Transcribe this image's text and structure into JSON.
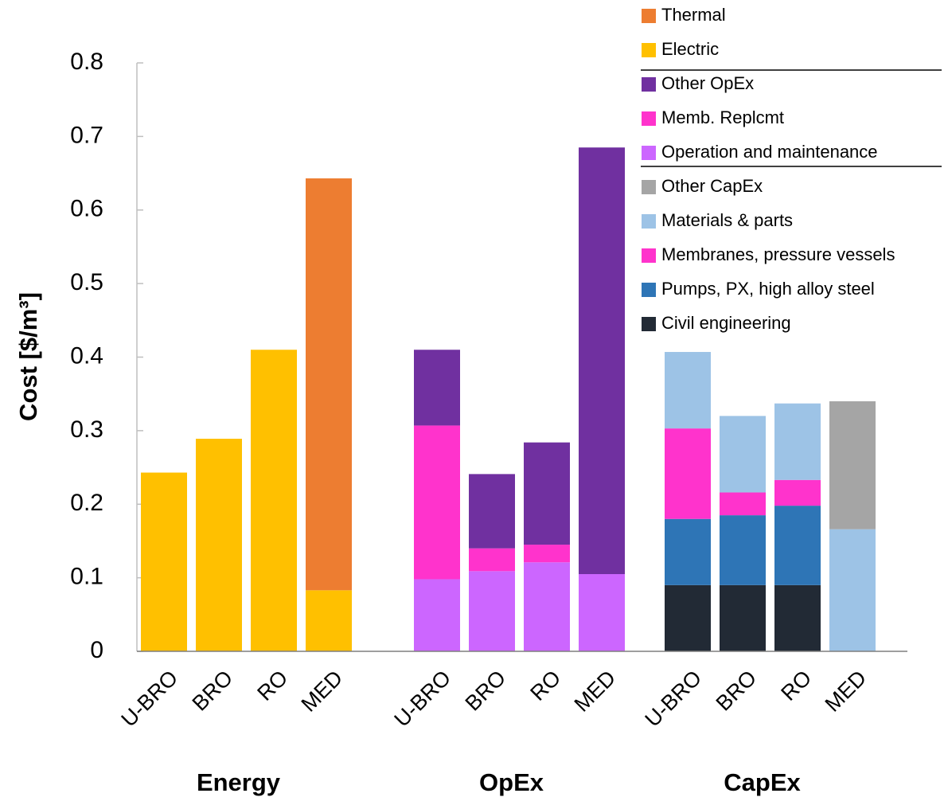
{
  "chart_data": {
    "type": "stacked_bar",
    "y_label": "Cost [$/m³]",
    "groups": [
      "Energy",
      "OpEx",
      "CapEx"
    ],
    "categories": [
      "U-BRO",
      "BRO",
      "RO",
      "MED",
      "U-BRO",
      "BRO",
      "RO",
      "MED",
      "U-BRO",
      "BRO",
      "RO",
      "MED"
    ],
    "series": [
      {
        "name": "Civil engineering",
        "color": "#222a35",
        "values": [
          null,
          null,
          null,
          null,
          null,
          null,
          null,
          null,
          0.09,
          0.09,
          0.09,
          null
        ]
      },
      {
        "name": "Pumps, PX, high alloy steel",
        "color": "#2e75b6",
        "values": [
          null,
          null,
          null,
          null,
          null,
          null,
          null,
          null,
          0.09,
          0.095,
          0.108,
          null
        ]
      },
      {
        "name": "Membranes, pressure vessels",
        "color": "#ff33cc",
        "values": [
          null,
          null,
          null,
          null,
          null,
          null,
          null,
          null,
          0.123,
          0.031,
          0.035,
          null
        ]
      },
      {
        "name": "Materials & parts",
        "color": "#9dc3e6",
        "values": [
          null,
          null,
          null,
          null,
          null,
          null,
          null,
          null,
          0.104,
          0.104,
          0.104,
          0.166
        ]
      },
      {
        "name": "Other CapEx",
        "color": "#a5a5a5",
        "values": [
          null,
          null,
          null,
          null,
          null,
          null,
          null,
          null,
          null,
          null,
          null,
          0.174
        ]
      },
      {
        "name": "Operation and maintenance",
        "color": "#cc66ff",
        "values": [
          null,
          null,
          null,
          null,
          0.098,
          0.109,
          0.121,
          0.105,
          null,
          null,
          null,
          null
        ]
      },
      {
        "name": "Memb. Replcmt",
        "color": "#ff33cc",
        "values": [
          null,
          null,
          null,
          null,
          0.209,
          0.031,
          0.024,
          null,
          null,
          null,
          null,
          null
        ]
      },
      {
        "name": "Other OpEx",
        "color": "#7030a0",
        "values": [
          null,
          null,
          null,
          null,
          0.103,
          0.101,
          0.139,
          0.58,
          null,
          null,
          null,
          null
        ]
      },
      {
        "name": "Electric",
        "color": "#ffc000",
        "values": [
          0.243,
          0.289,
          0.41,
          0.083,
          null,
          null,
          null,
          null,
          null,
          null,
          null,
          null
        ]
      },
      {
        "name": "Thermal",
        "color": "#ed7d31",
        "values": [
          null,
          null,
          null,
          0.56,
          null,
          null,
          null,
          null,
          null,
          null,
          null,
          null
        ]
      }
    ],
    "ylim": [
      0,
      0.8
    ],
    "yticks": [
      0,
      0.1,
      0.2,
      0.3,
      0.4,
      0.5,
      0.6,
      0.7,
      0.8
    ]
  }
}
